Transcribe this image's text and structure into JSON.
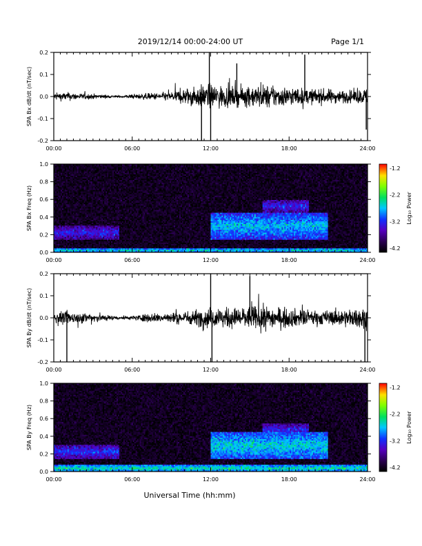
{
  "header": {
    "date_range": "2019/12/14  00:00-24:00 UT",
    "page": "Page 1/1"
  },
  "x_axis_title": "Universal Time (hh:mm)",
  "x_tick_labels": [
    "00:00",
    "06:00",
    "12:00",
    "18:00",
    "24:00"
  ],
  "chart_data": [
    {
      "type": "line",
      "ylabel": "SPA Bx dB/dt (nT/sec)",
      "xlim": [
        0,
        24
      ],
      "ylim": [
        -0.2,
        0.2
      ],
      "y_ticks": [
        "0.2",
        "0.1",
        "0.0",
        "-0.1",
        "-0.2"
      ],
      "envelope": {
        "x_hours": [
          0,
          1,
          2,
          3,
          4,
          5,
          6,
          7,
          8,
          9,
          10,
          11,
          12,
          13,
          14,
          15,
          16,
          17,
          18,
          19,
          20,
          21,
          22,
          23,
          24
        ],
        "amplitude": [
          0.035,
          0.04,
          0.03,
          0.025,
          0.015,
          0.01,
          0.02,
          0.03,
          0.035,
          0.045,
          0.08,
          0.1,
          0.12,
          0.1,
          0.09,
          0.1,
          0.11,
          0.1,
          0.09,
          0.08,
          0.07,
          0.07,
          0.06,
          0.06,
          0.08
        ]
      },
      "spikes": [
        {
          "x": 11.3,
          "y": -0.2
        },
        {
          "x": 11.9,
          "y": 0.2
        },
        {
          "x": 12.0,
          "y": -0.2
        },
        {
          "x": 14.0,
          "y": 0.15
        },
        {
          "x": 19.2,
          "y": 0.19
        },
        {
          "x": 23.9,
          "y": -0.15
        }
      ]
    },
    {
      "type": "heatmap",
      "ylabel": "SPA Bx Freq (Hz)",
      "xlim": [
        0,
        24
      ],
      "ylim": [
        0.0,
        1.0
      ],
      "y_ticks": [
        "1.0",
        "0.8",
        "0.6",
        "0.4",
        "0.2",
        "0.0"
      ],
      "colorbar": {
        "label": "Log₁₀ Power",
        "ticks": [
          "-1.2",
          "-2.2",
          "-3.2",
          "-4.2"
        ],
        "range": [
          -4.2,
          -1.2
        ]
      },
      "features": [
        {
          "name": "low-frequency band",
          "x": [
            0,
            24
          ],
          "freq": [
            0.0,
            0.05
          ],
          "power": -2.6
        },
        {
          "name": "early band",
          "x": [
            0,
            5
          ],
          "freq": [
            0.15,
            0.3
          ],
          "power": -3.2
        },
        {
          "name": "main band",
          "x": [
            12,
            21
          ],
          "freq": [
            0.15,
            0.45
          ],
          "power": -2.7
        },
        {
          "name": "upper arc",
          "x": [
            16,
            19.5
          ],
          "freq": [
            0.45,
            0.6
          ],
          "power": -3.2
        }
      ]
    },
    {
      "type": "line",
      "ylabel": "SPA By dB/dt (nT/sec)",
      "xlim": [
        0,
        24
      ],
      "ylim": [
        -0.2,
        0.2
      ],
      "y_ticks": [
        "0.2",
        "0.1",
        "0.0",
        "-0.1",
        "-0.2"
      ],
      "envelope": {
        "x_hours": [
          0,
          1,
          2,
          3,
          4,
          5,
          6,
          7,
          8,
          9,
          10,
          11,
          12,
          13,
          14,
          15,
          16,
          17,
          18,
          19,
          20,
          21,
          22,
          23,
          24
        ],
        "amplitude": [
          0.05,
          0.06,
          0.05,
          0.05,
          0.03,
          0.015,
          0.02,
          0.04,
          0.045,
          0.05,
          0.06,
          0.08,
          0.1,
          0.09,
          0.1,
          0.11,
          0.12,
          0.1,
          0.09,
          0.08,
          0.07,
          0.07,
          0.08,
          0.09,
          0.1
        ]
      },
      "spikes": [
        {
          "x": 12.0,
          "y": 0.2
        },
        {
          "x": 12.1,
          "y": -0.2
        },
        {
          "x": 15.0,
          "y": 0.19
        },
        {
          "x": 23.8,
          "y": -0.2
        },
        {
          "x": 1.0,
          "y": -0.2
        }
      ]
    },
    {
      "type": "heatmap",
      "ylabel": "SPA By Freq (Hz)",
      "xlim": [
        0,
        24
      ],
      "ylim": [
        0.0,
        1.0
      ],
      "y_ticks": [
        "1.0",
        "0.8",
        "0.6",
        "0.4",
        "0.2",
        "0.0"
      ],
      "colorbar": {
        "label": "Log₁₀ Power",
        "ticks": [
          "-1.2",
          "-2.2",
          "-3.2",
          "-4.2"
        ],
        "range": [
          -4.2,
          -1.2
        ]
      },
      "features": [
        {
          "name": "low-frequency band",
          "x": [
            0,
            24
          ],
          "freq": [
            0.0,
            0.08
          ],
          "power": -2.5
        },
        {
          "name": "early band",
          "x": [
            0,
            5
          ],
          "freq": [
            0.15,
            0.3
          ],
          "power": -3.1
        },
        {
          "name": "main band",
          "x": [
            12,
            21
          ],
          "freq": [
            0.15,
            0.45
          ],
          "power": -2.6
        },
        {
          "name": "upper arc",
          "x": [
            16,
            19.5
          ],
          "freq": [
            0.4,
            0.55
          ],
          "power": -3.2
        }
      ]
    }
  ]
}
